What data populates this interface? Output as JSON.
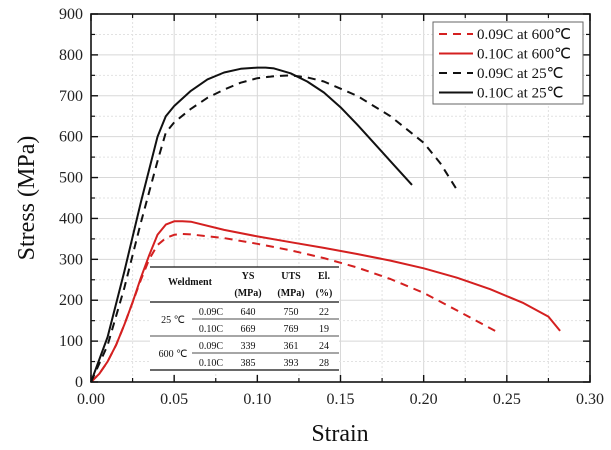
{
  "chart_data": {
    "type": "line",
    "title": "",
    "xlabel": "Strain",
    "ylabel": "Stress (MPa)",
    "xlim": [
      0,
      0.3
    ],
    "ylim": [
      0,
      900
    ],
    "xticks": [
      "0.00",
      "0.05",
      "0.10",
      "0.15",
      "0.20",
      "0.25",
      "0.30"
    ],
    "xtick_values": [
      0,
      0.05,
      0.1,
      0.15,
      0.2,
      0.25,
      0.3
    ],
    "yticks": [
      "0",
      "100",
      "200",
      "300",
      "400",
      "500",
      "600",
      "700",
      "800",
      "900"
    ],
    "ytick_values": [
      0,
      100,
      200,
      300,
      400,
      500,
      600,
      700,
      800,
      900
    ],
    "grid": true,
    "legend_position": "top-right",
    "series": [
      {
        "name": "0.09C at 600℃",
        "color": "#d42020",
        "dash": true,
        "x": [
          0,
          0.005,
          0.01,
          0.015,
          0.02,
          0.025,
          0.03,
          0.035,
          0.04,
          0.045,
          0.05,
          0.055,
          0.06,
          0.08,
          0.1,
          0.12,
          0.14,
          0.16,
          0.18,
          0.2,
          0.22,
          0.243
        ],
        "y": [
          0,
          20,
          50,
          90,
          140,
          195,
          250,
          300,
          335,
          352,
          360,
          362,
          361,
          352,
          338,
          322,
          303,
          280,
          252,
          218,
          175,
          125
        ]
      },
      {
        "name": "0.10C at 600℃",
        "color": "#d42020",
        "dash": false,
        "x": [
          0,
          0.005,
          0.01,
          0.015,
          0.02,
          0.025,
          0.03,
          0.035,
          0.04,
          0.045,
          0.05,
          0.055,
          0.06,
          0.08,
          0.1,
          0.12,
          0.14,
          0.16,
          0.18,
          0.2,
          0.22,
          0.24,
          0.26,
          0.275,
          0.282
        ],
        "y": [
          0,
          20,
          50,
          90,
          140,
          195,
          255,
          310,
          360,
          385,
          393,
          393,
          392,
          372,
          356,
          342,
          328,
          313,
          297,
          278,
          255,
          227,
          193,
          160,
          125
        ]
      },
      {
        "name": "0.09C at  25℃",
        "color": "#111111",
        "dash": true,
        "x": [
          0,
          0.01,
          0.02,
          0.03,
          0.04,
          0.045,
          0.05,
          0.06,
          0.07,
          0.08,
          0.09,
          0.1,
          0.11,
          0.12,
          0.13,
          0.14,
          0.16,
          0.18,
          0.2,
          0.21,
          0.22
        ],
        "y": [
          0,
          90,
          230,
          390,
          540,
          610,
          635,
          668,
          695,
          715,
          732,
          743,
          748,
          750,
          745,
          735,
          700,
          650,
          585,
          535,
          470
        ]
      },
      {
        "name": "0.10C at  25℃",
        "color": "#111111",
        "dash": false,
        "x": [
          0,
          0.01,
          0.02,
          0.03,
          0.04,
          0.045,
          0.05,
          0.06,
          0.07,
          0.08,
          0.09,
          0.1,
          0.105,
          0.11,
          0.12,
          0.13,
          0.14,
          0.15,
          0.16,
          0.17,
          0.18,
          0.193
        ],
        "y": [
          0,
          110,
          270,
          440,
          600,
          650,
          675,
          712,
          740,
          757,
          766,
          769,
          769,
          767,
          755,
          735,
          708,
          672,
          630,
          585,
          540,
          482
        ]
      }
    ],
    "inset_table": {
      "headers": [
        [
          "Weldment",
          ""
        ],
        [
          "YS",
          "(MPa)"
        ],
        [
          "UTS",
          "(MPa)"
        ],
        [
          "El.",
          "(%)"
        ]
      ],
      "groups": [
        {
          "temp": "25 ℃",
          "rows": [
            {
              "grade": "0.09C",
              "ys": "640",
              "uts": "750",
              "el": "22"
            },
            {
              "grade": "0.10C",
              "ys": "669",
              "uts": "769",
              "el": "19"
            }
          ]
        },
        {
          "temp": "600 ℃",
          "rows": [
            {
              "grade": "0.09C",
              "ys": "339",
              "uts": "361",
              "el": "24"
            },
            {
              "grade": "0.10C",
              "ys": "385",
              "uts": "393",
              "el": "28"
            }
          ]
        }
      ]
    }
  }
}
